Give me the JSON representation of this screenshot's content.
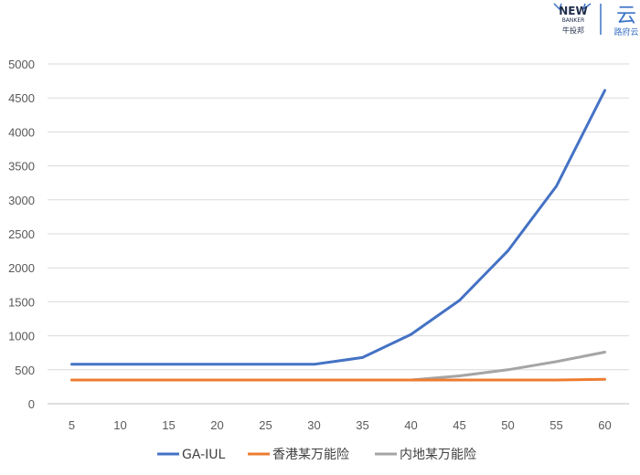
{
  "logos": {
    "left": {
      "main": "NEW",
      "sub": "BANKER",
      "cn": "牛投邦"
    },
    "right": {
      "symbol": "云",
      "text": "路府云"
    }
  },
  "chart_data": {
    "type": "line",
    "title": "",
    "xlabel": "",
    "ylabel": "",
    "x": [
      5,
      10,
      15,
      20,
      25,
      30,
      35,
      40,
      45,
      50,
      55,
      60
    ],
    "ylim": [
      0,
      5000
    ],
    "yticks": [
      0,
      500,
      1000,
      1500,
      2000,
      2500,
      3000,
      3500,
      4000,
      4500,
      5000
    ],
    "grid": "horizontal",
    "legend_position": "bottom",
    "series": [
      {
        "name": "GA-IUL",
        "color": "#4472c4",
        "values": [
          580,
          580,
          580,
          580,
          580,
          580,
          680,
          1020,
          1520,
          2250,
          3200,
          4610
        ]
      },
      {
        "name": "香港某万能险",
        "color": "#ed7d31",
        "values": [
          350,
          350,
          350,
          350,
          350,
          350,
          350,
          350,
          350,
          350,
          350,
          360
        ]
      },
      {
        "name": "内地某万能险",
        "color": "#a5a5a5",
        "values": [
          350,
          350,
          350,
          350,
          350,
          350,
          350,
          350,
          410,
          500,
          620,
          760
        ]
      }
    ]
  }
}
